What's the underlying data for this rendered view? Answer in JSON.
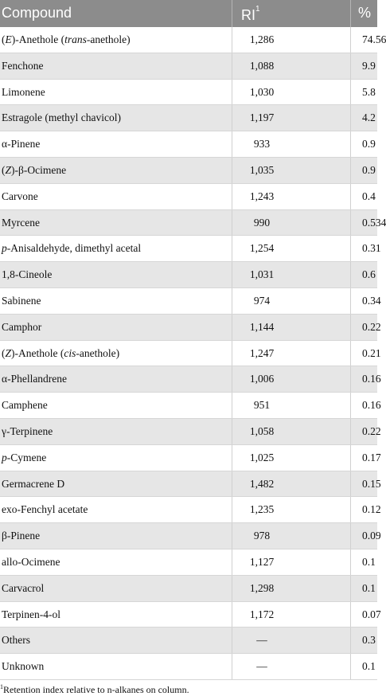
{
  "header": {
    "compound": "Compound",
    "ri": "RI",
    "ri_sup": "1",
    "pct": "%"
  },
  "rows": [
    {
      "name_pre": "(",
      "name_it": "E",
      "name_post": ")-Anethole (",
      "name_it2": "trans",
      "name_post2": "-anethole)",
      "ri": "1,286",
      "pct": "74.56"
    },
    {
      "name_pre": "Fenchone",
      "name_it": "",
      "name_post": "",
      "name_it2": "",
      "name_post2": "",
      "ri": "1,088",
      "pct": "9.9"
    },
    {
      "name_pre": "Limonene",
      "name_it": "",
      "name_post": "",
      "name_it2": "",
      "name_post2": "",
      "ri": "1,030",
      "pct": "5.8"
    },
    {
      "name_pre": "Estragole (methyl chavicol)",
      "name_it": "",
      "name_post": "",
      "name_it2": "",
      "name_post2": "",
      "ri": "1,197",
      "pct": "4.2"
    },
    {
      "name_pre": "α-Pinene",
      "name_it": "",
      "name_post": "",
      "name_it2": "",
      "name_post2": "",
      "ri": "933",
      "pct": "0.9"
    },
    {
      "name_pre": "(",
      "name_it": "Z",
      "name_post": ")-β-Ocimene",
      "name_it2": "",
      "name_post2": "",
      "ri": "1,035",
      "pct": "0.9"
    },
    {
      "name_pre": "Carvone",
      "name_it": "",
      "name_post": "",
      "name_it2": "",
      "name_post2": "",
      "ri": "1,243",
      "pct": "0.4"
    },
    {
      "name_pre": "Myrcene",
      "name_it": "",
      "name_post": "",
      "name_it2": "",
      "name_post2": "",
      "ri": "990",
      "pct": "0.534"
    },
    {
      "name_pre": "",
      "name_it": "p",
      "name_post": "-Anisaldehyde, dimethyl acetal",
      "name_it2": "",
      "name_post2": "",
      "ri": "1,254",
      "pct": "0.31"
    },
    {
      "name_pre": "1,8-Cineole",
      "name_it": "",
      "name_post": "",
      "name_it2": "",
      "name_post2": "",
      "ri": "1,031",
      "pct": "0.6"
    },
    {
      "name_pre": "Sabinene",
      "name_it": "",
      "name_post": "",
      "name_it2": "",
      "name_post2": "",
      "ri": "974",
      "pct": "0.34"
    },
    {
      "name_pre": "Camphor",
      "name_it": "",
      "name_post": "",
      "name_it2": "",
      "name_post2": "",
      "ri": "1,144",
      "pct": "0.22"
    },
    {
      "name_pre": "(",
      "name_it": "Z",
      "name_post": ")-Anethole (",
      "name_it2": "cis",
      "name_post2": "-anethole)",
      "ri": "1,247",
      "pct": "0.21"
    },
    {
      "name_pre": "α-Phellandrene",
      "name_it": "",
      "name_post": "",
      "name_it2": "",
      "name_post2": "",
      "ri": "1,006",
      "pct": "0.16"
    },
    {
      "name_pre": "Camphene",
      "name_it": "",
      "name_post": "",
      "name_it2": "",
      "name_post2": "",
      "ri": "951",
      "pct": "0.16"
    },
    {
      "name_pre": "γ-Terpinene",
      "name_it": "",
      "name_post": "",
      "name_it2": "",
      "name_post2": "",
      "ri": "1,058",
      "pct": "0.22"
    },
    {
      "name_pre": "",
      "name_it": "p",
      "name_post": "-Cymene",
      "name_it2": "",
      "name_post2": "",
      "ri": "1,025",
      "pct": "0.17"
    },
    {
      "name_pre": "Germacrene D",
      "name_it": "",
      "name_post": "",
      "name_it2": "",
      "name_post2": "",
      "ri": "1,482",
      "pct": "0.15"
    },
    {
      "name_pre": "exo-Fenchyl acetate",
      "name_it": "",
      "name_post": "",
      "name_it2": "",
      "name_post2": "",
      "ri": "1,235",
      "pct": "0.12"
    },
    {
      "name_pre": "β-Pinene",
      "name_it": "",
      "name_post": "",
      "name_it2": "",
      "name_post2": "",
      "ri": "978",
      "pct": "0.09"
    },
    {
      "name_pre": "allo-Ocimene",
      "name_it": "",
      "name_post": "",
      "name_it2": "",
      "name_post2": "",
      "ri": "1,127",
      "pct": "0.1"
    },
    {
      "name_pre": "Carvacrol",
      "name_it": "",
      "name_post": "",
      "name_it2": "",
      "name_post2": "",
      "ri": "1,298",
      "pct": "0.1"
    },
    {
      "name_pre": "Terpinen-4-ol",
      "name_it": "",
      "name_post": "",
      "name_it2": "",
      "name_post2": "",
      "ri": "1,172",
      "pct": "0.07"
    },
    {
      "name_pre": "Others",
      "name_it": "",
      "name_post": "",
      "name_it2": "",
      "name_post2": "",
      "ri": "—",
      "pct": "0.3"
    },
    {
      "name_pre": "Unknown",
      "name_it": "",
      "name_post": "",
      "name_it2": "",
      "name_post2": "",
      "ri": "—",
      "pct": "0.1"
    }
  ],
  "footnote": {
    "sup": "1",
    "text": "Retention index relative to n-alkanes on column."
  }
}
